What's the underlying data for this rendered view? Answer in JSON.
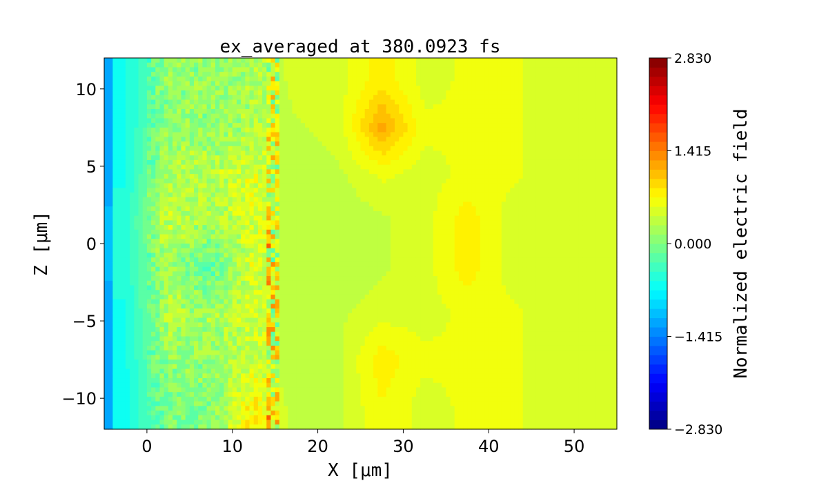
{
  "chart_data": {
    "type": "heatmap",
    "title": "ex_averaged at 380.0923 fs",
    "xlabel": "X [μm]",
    "ylabel": "Z [μm]",
    "colorbar_label": "Normalized electric field",
    "colormap": "jet",
    "xlim": [
      -5,
      55
    ],
    "ylim": [
      -12,
      12
    ],
    "clim": [
      -2.83,
      2.83
    ],
    "xticks": [
      0,
      10,
      20,
      30,
      40,
      50
    ],
    "xtick_labels": [
      "0",
      "10",
      "20",
      "30",
      "40",
      "50"
    ],
    "yticks": [
      -10,
      -5,
      0,
      5,
      10
    ],
    "ytick_labels": [
      "−10",
      "−5",
      "0",
      "5",
      "10"
    ],
    "cticks": [
      2.83,
      1.415,
      0,
      -1.415,
      -2.83
    ],
    "ctick_labels": [
      "2.830",
      "1.415",
      "0.000",
      "−1.415",
      "−2.830"
    ],
    "grid_x_centers": [
      -2.5,
      2.5,
      7.5,
      12.5,
      17.5,
      22.5,
      27.5,
      32.5,
      37.5,
      42.5,
      47.5,
      52.5
    ],
    "grid_z_centers": [
      10.5,
      7.5,
      4.5,
      1.5,
      -1.5,
      -4.5,
      -7.5,
      -10.5
    ],
    "values_approx": [
      [
        -0.6,
        0.1,
        0.1,
        0.2,
        0.5,
        0.5,
        0.8,
        0.5,
        0.6,
        0.6,
        0.5,
        0.5
      ],
      [
        -0.6,
        0.1,
        0.1,
        0.3,
        0.4,
        0.5,
        1.2,
        0.6,
        0.6,
        0.6,
        0.5,
        0.5
      ],
      [
        -0.6,
        0.3,
        0.3,
        0.5,
        0.3,
        0.4,
        0.6,
        0.5,
        0.6,
        0.6,
        0.5,
        0.5
      ],
      [
        -0.5,
        0.4,
        0.2,
        0.5,
        0.3,
        0.3,
        0.4,
        0.5,
        0.8,
        0.5,
        0.5,
        0.5
      ],
      [
        -0.5,
        0.2,
        -0.2,
        0.5,
        0.3,
        0.3,
        0.4,
        0.5,
        0.8,
        0.5,
        0.5,
        0.5
      ],
      [
        -0.6,
        0.3,
        0.2,
        0.5,
        0.3,
        0.4,
        0.5,
        0.5,
        0.6,
        0.6,
        0.5,
        0.5
      ],
      [
        -0.6,
        0.1,
        0.1,
        0.4,
        0.3,
        0.4,
        0.8,
        0.6,
        0.6,
        0.6,
        0.5,
        0.5
      ],
      [
        -0.6,
        0.0,
        0.0,
        0.8,
        0.3,
        0.4,
        0.7,
        0.5,
        0.6,
        0.6,
        0.5,
        0.5
      ]
    ]
  }
}
